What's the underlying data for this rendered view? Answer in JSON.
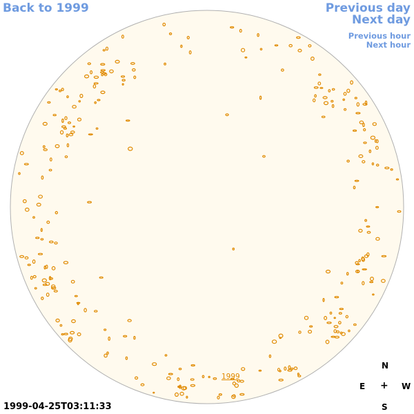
{
  "nav": {
    "back": "Back to 1999",
    "previous_day": "Previous day",
    "next_day": "Next day",
    "previous_hour": "Previous hour",
    "next_hour": "Next hour"
  },
  "timestamp": "1999-04-25T03:11:33",
  "year_link": "1999",
  "compass": {
    "north": "N",
    "south": "S",
    "east": "E",
    "west": "W",
    "center": "+"
  },
  "colors": {
    "link": "#6f9be0",
    "disk_fill": "#fffaee",
    "disk_edge": "#b0b0b0",
    "contour": "#e08a00"
  }
}
